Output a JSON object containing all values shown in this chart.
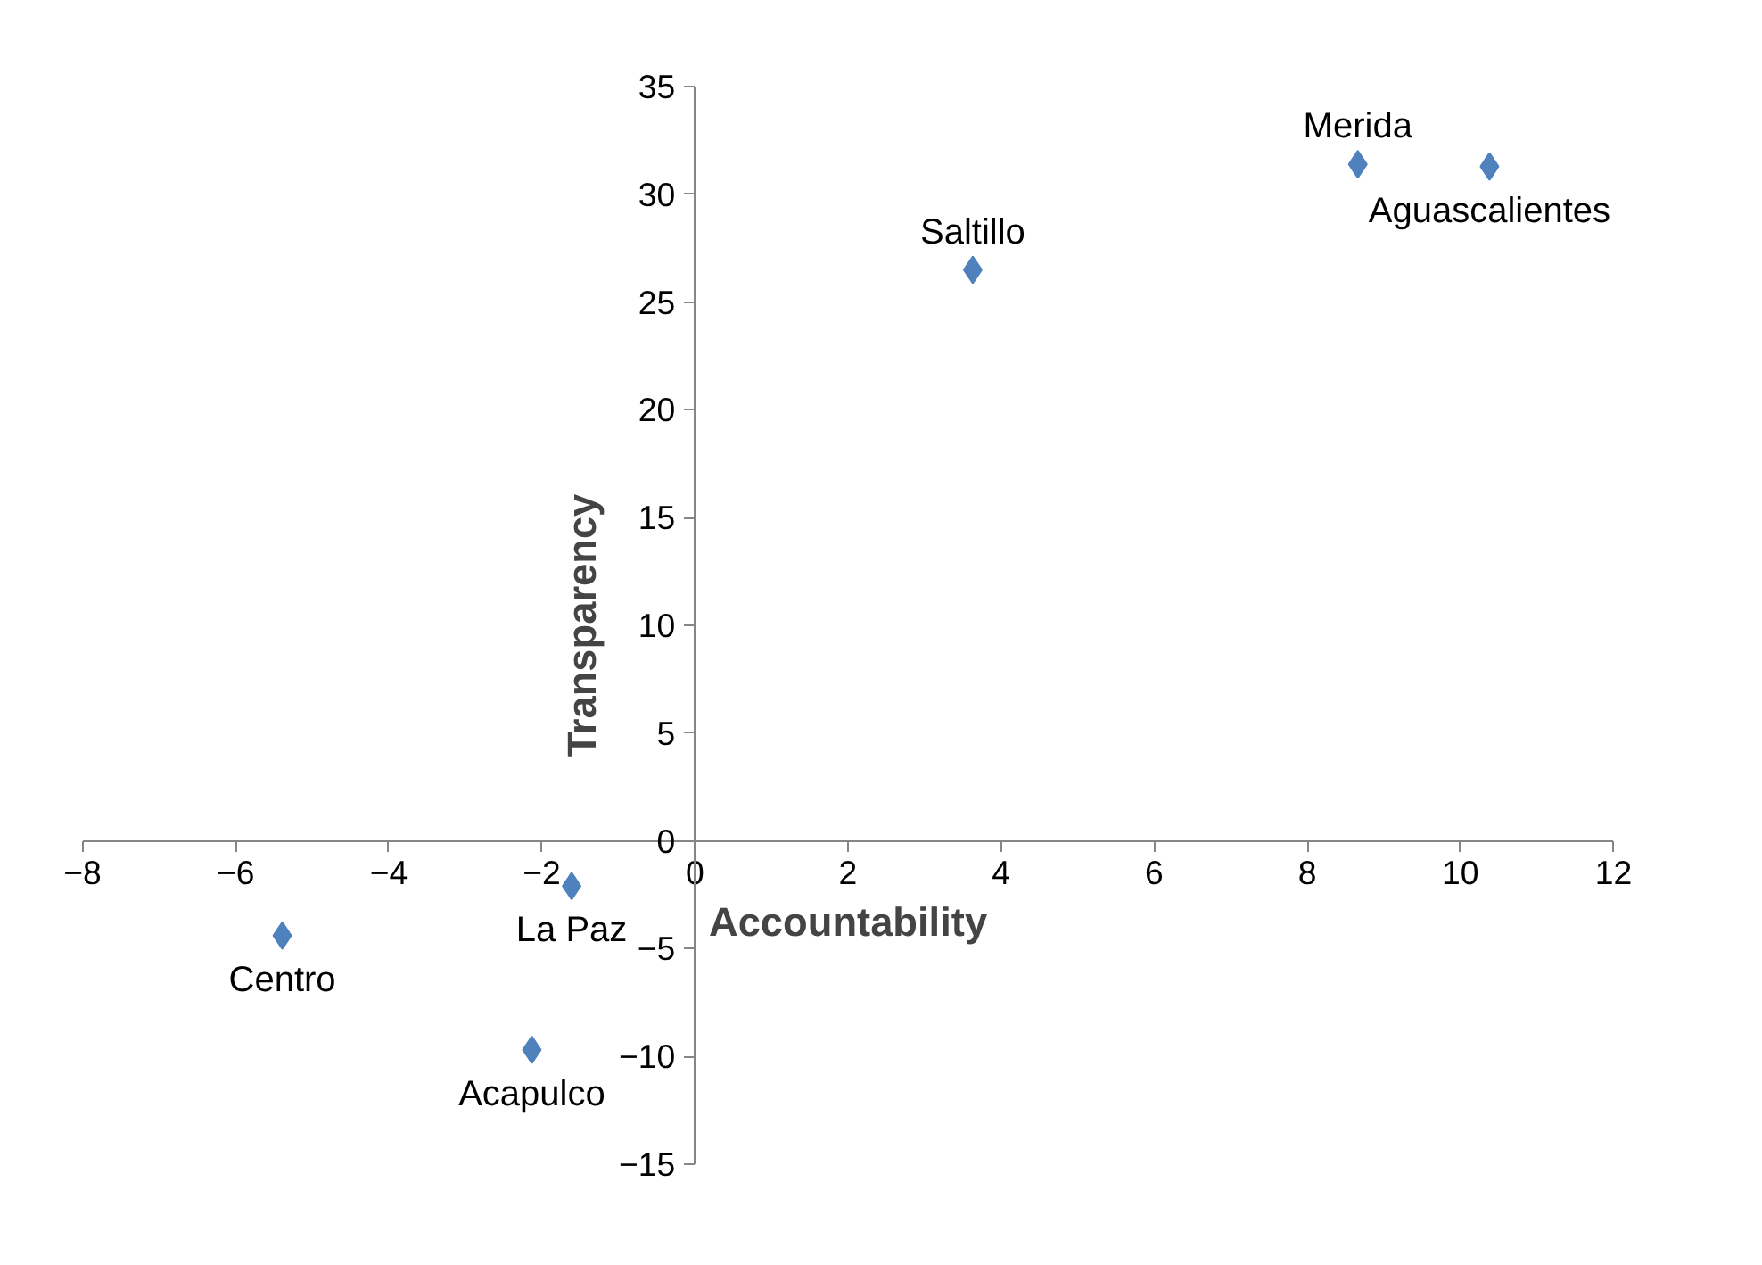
{
  "chart_data": {
    "type": "scatter",
    "xlabel": "Accountability",
    "ylabel": "Transparency",
    "x": [
      8.66,
      10.38,
      3.63,
      -1.61,
      -5.39,
      -2.13
    ],
    "series": [
      {
        "color": "#4f81bd",
        "values": [
          31.4,
          31.3,
          26.5,
          -2.1,
          -4.4,
          -9.7
        ]
      }
    ],
    "annotations": [
      {
        "text": "Merida",
        "x": 8.66,
        "y": 31.4
      },
      {
        "text": "Aguascalientes",
        "x": 10.38,
        "y": 31.3
      },
      {
        "text": "Saltillo",
        "x": 3.63,
        "y": 26.5
      },
      {
        "text": "La Paz",
        "x": -1.61,
        "y": -2.1
      },
      {
        "text": "Centro",
        "x": -5.39,
        "y": -4.4
      },
      {
        "text": "Acapulco",
        "x": -2.13,
        "y": -9.7
      }
    ],
    "xlim": [
      -8,
      12
    ],
    "ylim": [
      -15,
      35
    ],
    "xticks": [
      -8,
      -6,
      -4,
      -2,
      0,
      2,
      4,
      6,
      8,
      10,
      12
    ],
    "yticks": [
      -15,
      -10,
      -5,
      0,
      5,
      10,
      15,
      20,
      25,
      30,
      35
    ],
    "marker": "diamond",
    "grid": false
  }
}
